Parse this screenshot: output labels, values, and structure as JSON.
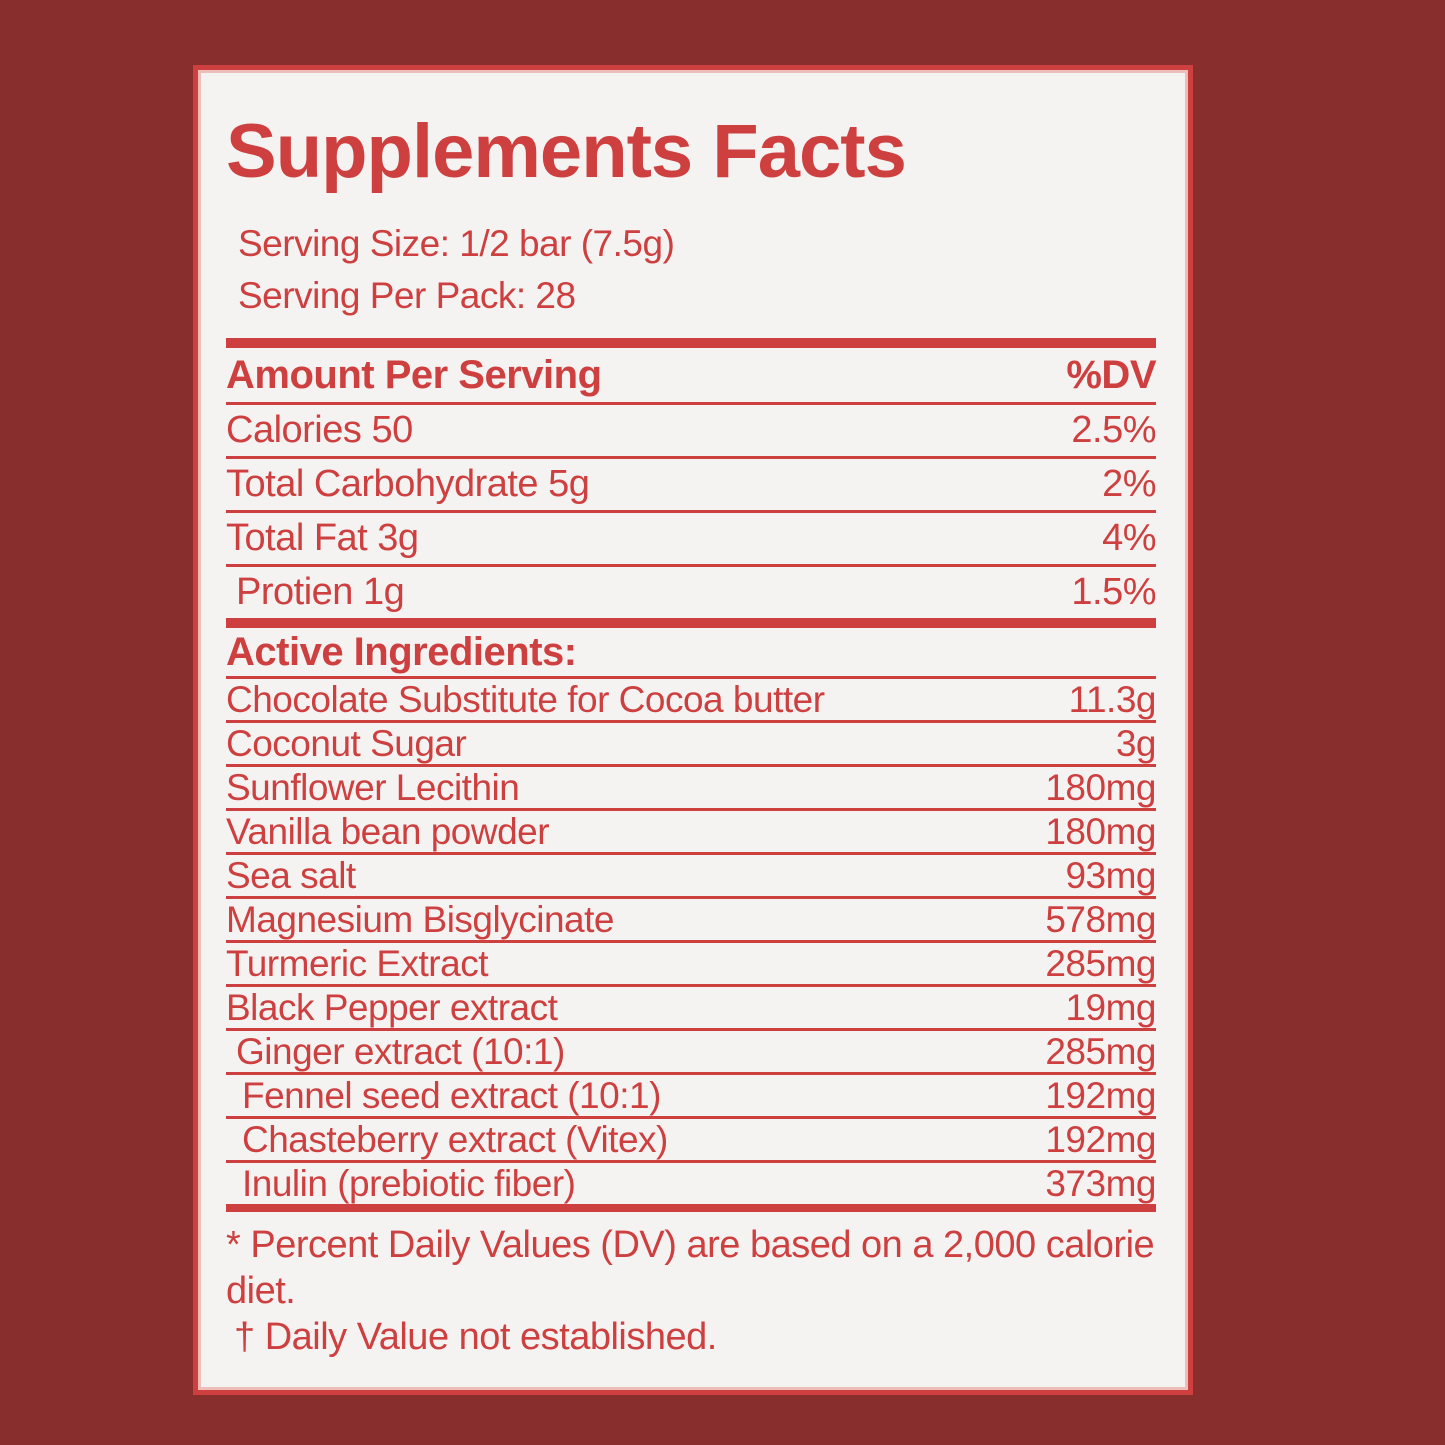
{
  "label": {
    "title": "Supplements Facts",
    "serving_size": "Serving Size: 1/2 bar (7.5g)",
    "servings_per_pack": "Serving Per Pack: 28",
    "nutrition": {
      "col_amount": "Amount Per Serving",
      "col_dv": "%DV",
      "rows": [
        {
          "name": "Calories 50",
          "dv": "2.5%"
        },
        {
          "name": "Total Carbohydrate 5g",
          "dv": "2%"
        },
        {
          "name": "Total Fat 3g",
          "dv": "4%"
        },
        {
          "name": "Protien 1g",
          "dv": "1.5%"
        }
      ]
    },
    "active_ingredients": {
      "heading": "Active Ingredients:",
      "rows": [
        {
          "name": "Chocolate Substitute for Cocoa butter",
          "amount": "11.3g"
        },
        {
          "name": "Coconut Sugar",
          "amount": "3g"
        },
        {
          "name": "Sunflower Lecithin",
          "amount": "180mg"
        },
        {
          "name": "Vanilla bean powder",
          "amount": "180mg"
        },
        {
          "name": "Sea salt",
          "amount": "93mg"
        },
        {
          "name": "Magnesium Bisglycinate",
          "amount": "578mg"
        },
        {
          "name": "Turmeric Extract",
          "amount": "285mg"
        },
        {
          "name": "Black Pepper extract",
          "amount": "19mg"
        },
        {
          "name": "Ginger extract (10:1)",
          "amount": "285mg"
        },
        {
          "name": "Fennel seed extract (10:1)",
          "amount": "192mg"
        },
        {
          "name": "Chasteberry extract (Vitex)",
          "amount": "192mg"
        },
        {
          "name": "Inulin (prebiotic fiber)",
          "amount": "373mg"
        }
      ]
    },
    "footnotes": {
      "percent_dv": "* Percent Daily Values (DV) are based on a 2,000 calorie diet.",
      "not_established": "† Daily Value not established."
    },
    "colors": {
      "accent_red": "#CE4040",
      "background_maroon": "#882E2C",
      "panel_offwhite": "#F4F3F2",
      "inner_border_pink": "#EDBDB9"
    }
  }
}
